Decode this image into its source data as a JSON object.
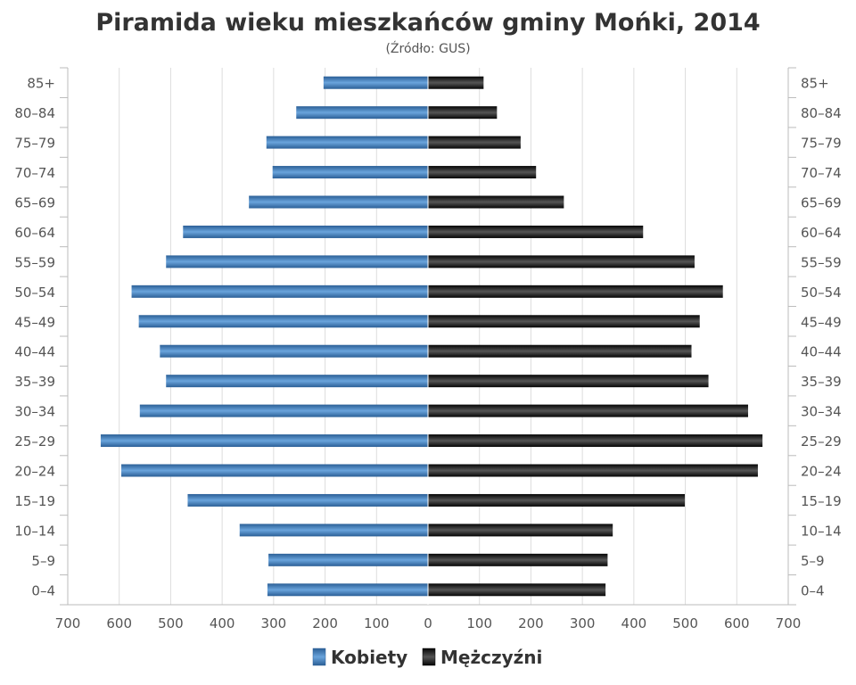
{
  "chart_data": {
    "type": "bar",
    "orientation": "horizontal-pyramid",
    "title": "Piramida wieku mieszkańców gminy Mońki, 2014",
    "subtitle": "(Źródło: GUS)",
    "categories": [
      "0–4",
      "5–9",
      "10–14",
      "15–19",
      "20–24",
      "25–29",
      "30–34",
      "35–39",
      "40–44",
      "45–49",
      "50–54",
      "55–59",
      "60–64",
      "65–69",
      "70–74",
      "75–79",
      "80–84",
      "85+"
    ],
    "series": [
      {
        "name": "Kobiety",
        "color": "#3a78b6",
        "side": "left",
        "values": [
          312,
          310,
          366,
          467,
          596,
          636,
          560,
          509,
          521,
          562,
          576,
          509,
          476,
          348,
          302,
          314,
          256,
          203
        ]
      },
      {
        "name": "Mężczyźni",
        "color": "#111111",
        "side": "right",
        "values": [
          345,
          349,
          359,
          499,
          641,
          650,
          622,
          545,
          512,
          528,
          573,
          518,
          418,
          264,
          210,
          180,
          134,
          108
        ]
      }
    ],
    "xlim": [
      -700,
      700
    ],
    "xticks": [
      "700",
      "600",
      "500",
      "400",
      "300",
      "200",
      "100",
      "0",
      "100",
      "200",
      "300",
      "400",
      "500",
      "600",
      "700"
    ],
    "grid": true,
    "legend": "bottom-center"
  }
}
